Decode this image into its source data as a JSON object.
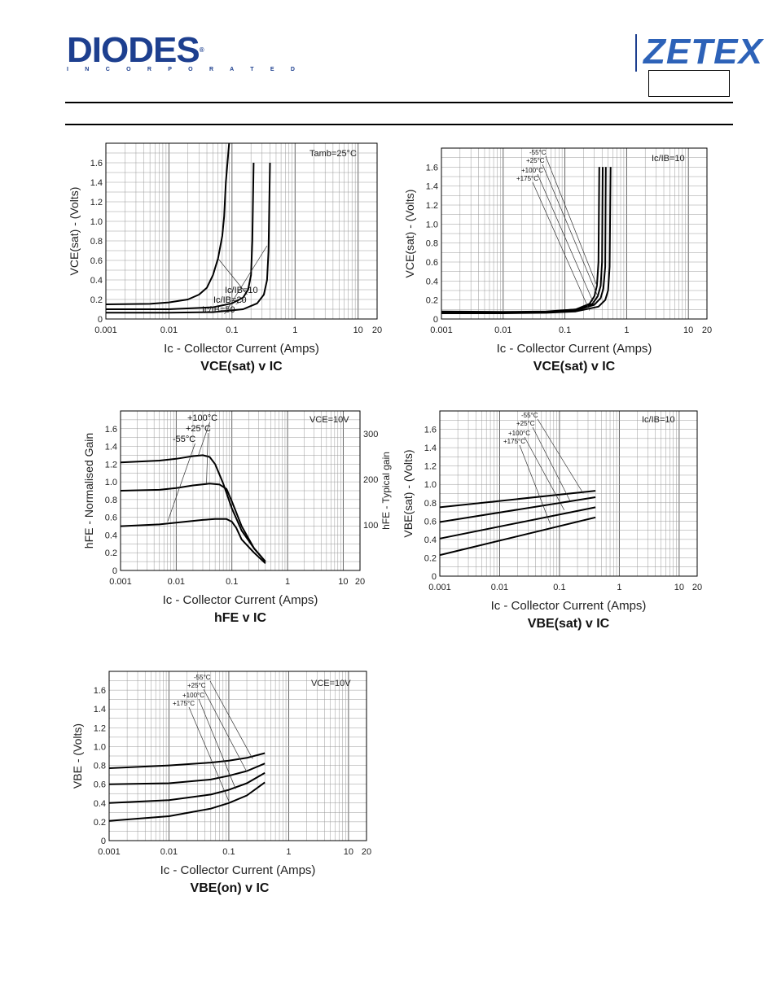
{
  "header": {
    "brand_left": "DIODES",
    "brand_left_sub": "I N C O R P O R A T E D",
    "brand_right": "ZETEX"
  },
  "chart_data": [
    {
      "id": "c1",
      "type": "line",
      "title": "VCE(sat) v IC",
      "xlabel": "Ic - Collector Current (Amps)",
      "ylabel": "VCE(sat) - (Volts)",
      "x_scale": "log",
      "xlim": [
        0.001,
        20
      ],
      "ylim": [
        0,
        1.8
      ],
      "x_ticks": [
        0.001,
        0.01,
        0.1,
        1,
        10,
        20
      ],
      "x_tick_labels": [
        "0.001",
        "0.01",
        "0.1",
        "1",
        "10",
        "20"
      ],
      "y_ticks": [
        0,
        0.2,
        0.4,
        0.6,
        0.8,
        1.0,
        1.2,
        1.4,
        1.6
      ],
      "y_tick_labels": [
        "0",
        "0.2",
        "0.4",
        "0.6",
        "0.8",
        "1.0",
        "1.2",
        "1.4",
        "1.6"
      ],
      "grid": true,
      "annotations": [
        "Tamb=25°C"
      ],
      "series": [
        {
          "name": "Ic/IB=10",
          "x": [
            0.001,
            0.005,
            0.01,
            0.02,
            0.03,
            0.04,
            0.05,
            0.06,
            0.07,
            0.075,
            0.08,
            0.09
          ],
          "y": [
            0.15,
            0.155,
            0.17,
            0.2,
            0.25,
            0.32,
            0.45,
            0.62,
            0.85,
            1.05,
            1.4,
            1.8
          ]
        },
        {
          "name": "Ic/IB=20",
          "x": [
            0.001,
            0.01,
            0.05,
            0.1,
            0.15,
            0.18,
            0.2,
            0.21,
            0.22
          ],
          "y": [
            0.1,
            0.1,
            0.12,
            0.16,
            0.22,
            0.3,
            0.45,
            0.8,
            1.6
          ]
        },
        {
          "name": "Ic/IB=50",
          "x": [
            0.001,
            0.01,
            0.05,
            0.15,
            0.25,
            0.32,
            0.36,
            0.38,
            0.4
          ],
          "y": [
            0.065,
            0.065,
            0.07,
            0.1,
            0.16,
            0.25,
            0.4,
            0.7,
            1.6
          ]
        }
      ]
    },
    {
      "id": "c2",
      "type": "line",
      "title": "VCE(sat) v IC",
      "xlabel": "Ic - Collector Current (Amps)",
      "ylabel": "VCE(sat) - (Volts)",
      "x_scale": "log",
      "xlim": [
        0.001,
        20
      ],
      "ylim": [
        0,
        1.8
      ],
      "x_ticks": [
        0.001,
        0.01,
        0.1,
        1,
        10,
        20
      ],
      "x_tick_labels": [
        "0.001",
        "0.01",
        "0.1",
        "1",
        "10",
        "20"
      ],
      "y_ticks": [
        0,
        0.2,
        0.4,
        0.6,
        0.8,
        1.0,
        1.2,
        1.4,
        1.6
      ],
      "y_tick_labels": [
        "0",
        "0.2",
        "0.4",
        "0.6",
        "0.8",
        "1.0",
        "1.2",
        "1.4",
        "1.6"
      ],
      "grid": true,
      "annotations": [
        "Ic/IB=10"
      ],
      "series": [
        {
          "name": "-55°C",
          "x": [
            0.001,
            0.01,
            0.05,
            0.15,
            0.25,
            0.3,
            0.33,
            0.35,
            0.36
          ],
          "y": [
            0.08,
            0.075,
            0.08,
            0.1,
            0.16,
            0.24,
            0.35,
            0.6,
            1.6
          ]
        },
        {
          "name": "+25°C",
          "x": [
            0.001,
            0.01,
            0.05,
            0.15,
            0.28,
            0.34,
            0.38,
            0.4,
            0.41
          ],
          "y": [
            0.075,
            0.07,
            0.075,
            0.1,
            0.16,
            0.24,
            0.35,
            0.6,
            1.6
          ]
        },
        {
          "name": "+100°C",
          "x": [
            0.001,
            0.01,
            0.05,
            0.15,
            0.3,
            0.38,
            0.42,
            0.45,
            0.46
          ],
          "y": [
            0.07,
            0.065,
            0.07,
            0.09,
            0.15,
            0.22,
            0.32,
            0.55,
            1.6
          ]
        },
        {
          "name": "+175°C",
          "x": [
            0.001,
            0.01,
            0.05,
            0.15,
            0.35,
            0.45,
            0.5,
            0.53,
            0.55
          ],
          "y": [
            0.06,
            0.06,
            0.065,
            0.08,
            0.13,
            0.2,
            0.3,
            0.55,
            1.6
          ]
        }
      ]
    },
    {
      "id": "c3",
      "type": "line",
      "title": "hFE v IC",
      "xlabel": "Ic - Collector Current (Amps)",
      "ylabel": "hFE - Normalised Gain",
      "y2label": "hFE - Typical gain",
      "x_scale": "log",
      "xlim": [
        0.001,
        20
      ],
      "ylim": [
        0,
        1.8
      ],
      "x_ticks": [
        0.001,
        0.01,
        0.1,
        1,
        10,
        20
      ],
      "x_tick_labels": [
        "0.001",
        "0.01",
        "0.1",
        "1",
        "10",
        "20"
      ],
      "y_ticks": [
        0,
        0.2,
        0.4,
        0.6,
        0.8,
        1.0,
        1.2,
        1.4,
        1.6
      ],
      "y_tick_labels": [
        "0",
        "0.2",
        "0.4",
        "0.6",
        "0.8",
        "1.0",
        "1.2",
        "1.4",
        "1.6"
      ],
      "y2_ticks": [
        100,
        200,
        300
      ],
      "y2_tick_labels": [
        "100",
        "200",
        "300"
      ],
      "grid": true,
      "annotations": [
        "VCE=10V"
      ],
      "series": [
        {
          "name": "+100°C",
          "x": [
            0.001,
            0.005,
            0.01,
            0.02,
            0.03,
            0.04,
            0.05,
            0.07,
            0.1,
            0.15,
            0.25,
            0.4
          ],
          "y": [
            1.22,
            1.24,
            1.26,
            1.29,
            1.3,
            1.28,
            1.2,
            0.98,
            0.7,
            0.45,
            0.25,
            0.1
          ]
        },
        {
          "name": "+25°C",
          "x": [
            0.001,
            0.005,
            0.01,
            0.02,
            0.04,
            0.06,
            0.08,
            0.1,
            0.15,
            0.25,
            0.4
          ],
          "y": [
            0.9,
            0.91,
            0.93,
            0.96,
            0.98,
            0.97,
            0.92,
            0.78,
            0.5,
            0.25,
            0.1
          ]
        },
        {
          "name": "-55°C",
          "x": [
            0.001,
            0.005,
            0.01,
            0.03,
            0.05,
            0.08,
            0.1,
            0.12,
            0.15,
            0.25,
            0.4
          ],
          "y": [
            0.5,
            0.52,
            0.54,
            0.57,
            0.58,
            0.58,
            0.55,
            0.48,
            0.35,
            0.2,
            0.08
          ]
        }
      ]
    },
    {
      "id": "c4",
      "type": "line",
      "title": "VBE(sat) v IC",
      "xlabel": "Ic - Collector Current (Amps)",
      "ylabel": "VBE(sat) - (Volts)",
      "x_scale": "log",
      "xlim": [
        0.001,
        20
      ],
      "ylim": [
        0,
        1.8
      ],
      "x_ticks": [
        0.001,
        0.01,
        0.1,
        1,
        10,
        20
      ],
      "x_tick_labels": [
        "0.001",
        "0.01",
        "0.1",
        "1",
        "10",
        "20"
      ],
      "y_ticks": [
        0,
        0.2,
        0.4,
        0.6,
        0.8,
        1.0,
        1.2,
        1.4,
        1.6
      ],
      "y_tick_labels": [
        "0",
        "0.2",
        "0.4",
        "0.6",
        "0.8",
        "1.0",
        "1.2",
        "1.4",
        "1.6"
      ],
      "grid": true,
      "annotations": [
        "Ic/IB=10"
      ],
      "series": [
        {
          "name": "-55°C",
          "x": [
            0.001,
            0.4
          ],
          "y": [
            0.75,
            0.93
          ]
        },
        {
          "name": "+25°C",
          "x": [
            0.001,
            0.4
          ],
          "y": [
            0.59,
            0.86
          ]
        },
        {
          "name": "+100°C",
          "x": [
            0.001,
            0.4
          ],
          "y": [
            0.41,
            0.75
          ]
        },
        {
          "name": "+175°C",
          "x": [
            0.001,
            0.4
          ],
          "y": [
            0.23,
            0.64
          ]
        }
      ]
    },
    {
      "id": "c5",
      "type": "line",
      "title": "VBE(on) v IC",
      "xlabel": "Ic - Collector Current (Amps)",
      "ylabel": "VBE - (Volts)",
      "x_scale": "log",
      "xlim": [
        0.001,
        20
      ],
      "ylim": [
        0,
        1.8
      ],
      "x_ticks": [
        0.001,
        0.01,
        0.1,
        1,
        10,
        20
      ],
      "x_tick_labels": [
        "0.001",
        "0.01",
        "0.1",
        "1",
        "10",
        "20"
      ],
      "y_ticks": [
        0,
        0.2,
        0.4,
        0.6,
        0.8,
        1.0,
        1.2,
        1.4,
        1.6
      ],
      "y_tick_labels": [
        "0",
        "0.2",
        "0.4",
        "0.6",
        "0.8",
        "1.0",
        "1.2",
        "1.4",
        "1.6"
      ],
      "grid": true,
      "annotations": [
        "VCE=10V"
      ],
      "series": [
        {
          "name": "-55°C",
          "x": [
            0.001,
            0.01,
            0.05,
            0.1,
            0.2,
            0.4
          ],
          "y": [
            0.77,
            0.8,
            0.83,
            0.85,
            0.88,
            0.93
          ]
        },
        {
          "name": "+25°C",
          "x": [
            0.001,
            0.01,
            0.05,
            0.1,
            0.2,
            0.4
          ],
          "y": [
            0.6,
            0.61,
            0.65,
            0.69,
            0.74,
            0.82
          ]
        },
        {
          "name": "+100°C",
          "x": [
            0.001,
            0.01,
            0.05,
            0.1,
            0.2,
            0.4
          ],
          "y": [
            0.4,
            0.43,
            0.49,
            0.54,
            0.61,
            0.72
          ]
        },
        {
          "name": "+175°C",
          "x": [
            0.001,
            0.01,
            0.05,
            0.1,
            0.2,
            0.4
          ],
          "y": [
            0.21,
            0.26,
            0.34,
            0.4,
            0.48,
            0.62
          ]
        }
      ]
    }
  ]
}
